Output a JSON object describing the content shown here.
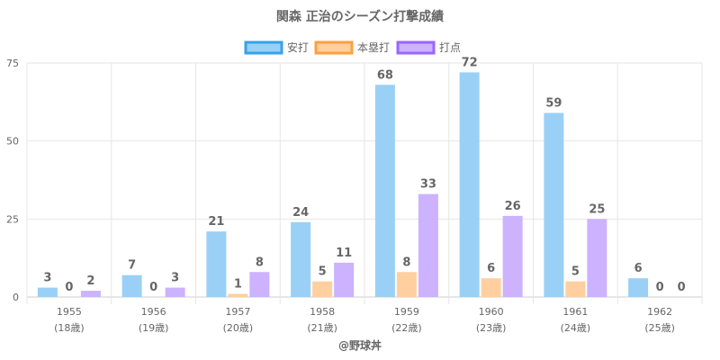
{
  "chart_data": {
    "type": "bar",
    "title": "関森 正治のシーズン打撃成績",
    "categories": [
      "1955",
      "1956",
      "1957",
      "1958",
      "1959",
      "1960",
      "1961",
      "1962"
    ],
    "category_sublabels": [
      "(18歳)",
      "(19歳)",
      "(20歳)",
      "(21歳)",
      "(22歳)",
      "(23歳)",
      "(24歳)",
      "(25歳)"
    ],
    "series": [
      {
        "name": "安打",
        "values": [
          3,
          7,
          21,
          24,
          68,
          72,
          59,
          6
        ],
        "fill": "#9ad0f5",
        "stroke": "#36a2eb"
      },
      {
        "name": "本塁打",
        "values": [
          0,
          0,
          1,
          5,
          8,
          6,
          5,
          0
        ],
        "fill": "#ffcf9f",
        "stroke": "#ff9f40"
      },
      {
        "name": "打点",
        "values": [
          2,
          3,
          8,
          11,
          33,
          26,
          25,
          0
        ],
        "fill": "#ccb2ff",
        "stroke": "#9966ff"
      }
    ],
    "y_ticks": [
      0,
      25,
      50,
      75
    ],
    "ylim": [
      0,
      75
    ],
    "xlabel": "",
    "ylabel": "",
    "legend": "top-center",
    "grid": true
  },
  "credit": "@野球丼"
}
